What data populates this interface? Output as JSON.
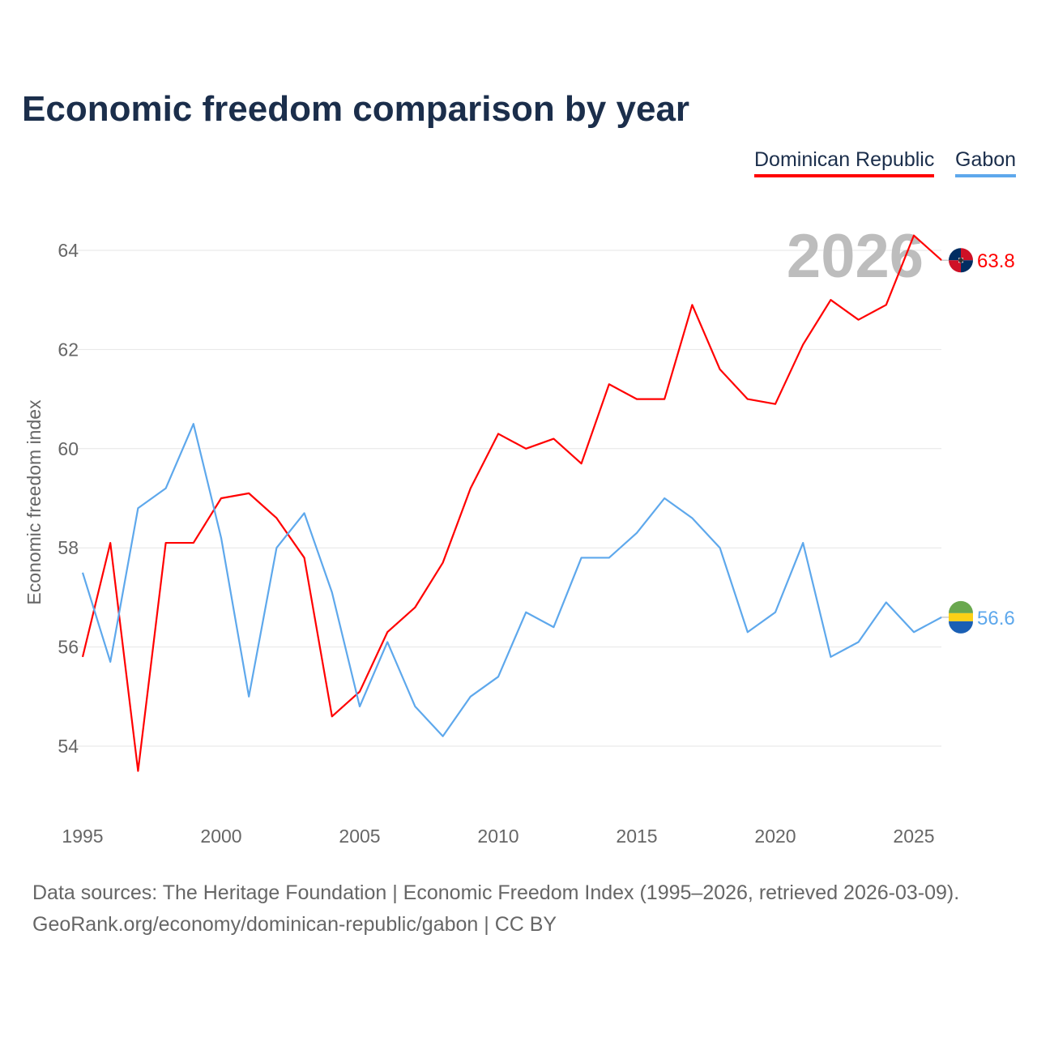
{
  "chart_data": {
    "type": "line",
    "title": "Economic freedom comparison by year",
    "xlabel": "",
    "ylabel": "Economic freedom index",
    "xlim": [
      1995,
      2026
    ],
    "ylim": [
      53,
      65
    ],
    "yticks": [
      54,
      56,
      58,
      60,
      62,
      64
    ],
    "xticks": [
      1995,
      2000,
      2005,
      2010,
      2015,
      2020,
      2025
    ],
    "grid": true,
    "legend_position": "top-right",
    "year_overlay": "2026",
    "x": [
      1995,
      1996,
      1997,
      1998,
      1999,
      2000,
      2001,
      2002,
      2003,
      2004,
      2005,
      2006,
      2007,
      2008,
      2009,
      2010,
      2011,
      2012,
      2013,
      2014,
      2015,
      2016,
      2017,
      2018,
      2019,
      2020,
      2021,
      2022,
      2023,
      2024,
      2025,
      2026
    ],
    "series": [
      {
        "name": "Dominican Republic",
        "color": "#ff0000",
        "end_label": "63.8",
        "values": [
          55.8,
          58.1,
          53.5,
          58.1,
          58.1,
          59.0,
          59.1,
          58.6,
          57.8,
          54.6,
          55.1,
          56.3,
          56.8,
          57.7,
          59.2,
          60.3,
          60.0,
          60.2,
          59.7,
          61.3,
          61.0,
          61.0,
          62.9,
          61.6,
          61.0,
          60.9,
          62.1,
          63.0,
          62.6,
          62.9,
          64.3,
          63.8
        ]
      },
      {
        "name": "Gabon",
        "color": "#5ea8ec",
        "end_label": "56.6",
        "values": [
          57.5,
          55.7,
          58.8,
          59.2,
          60.5,
          58.2,
          55.0,
          58.0,
          58.7,
          57.1,
          54.8,
          56.1,
          54.8,
          54.2,
          55.0,
          55.4,
          56.7,
          56.4,
          57.8,
          57.8,
          58.3,
          59.0,
          58.6,
          58.0,
          56.3,
          56.7,
          58.1,
          55.8,
          56.1,
          56.9,
          56.3,
          56.6
        ]
      }
    ]
  },
  "footer": {
    "line1": "Data sources: The Heritage Foundation | Economic Freedom Index (1995–2026, retrieved 2026-03-09).",
    "line2": "GeoRank.org/economy/dominican-republic/gabon | CC BY"
  }
}
